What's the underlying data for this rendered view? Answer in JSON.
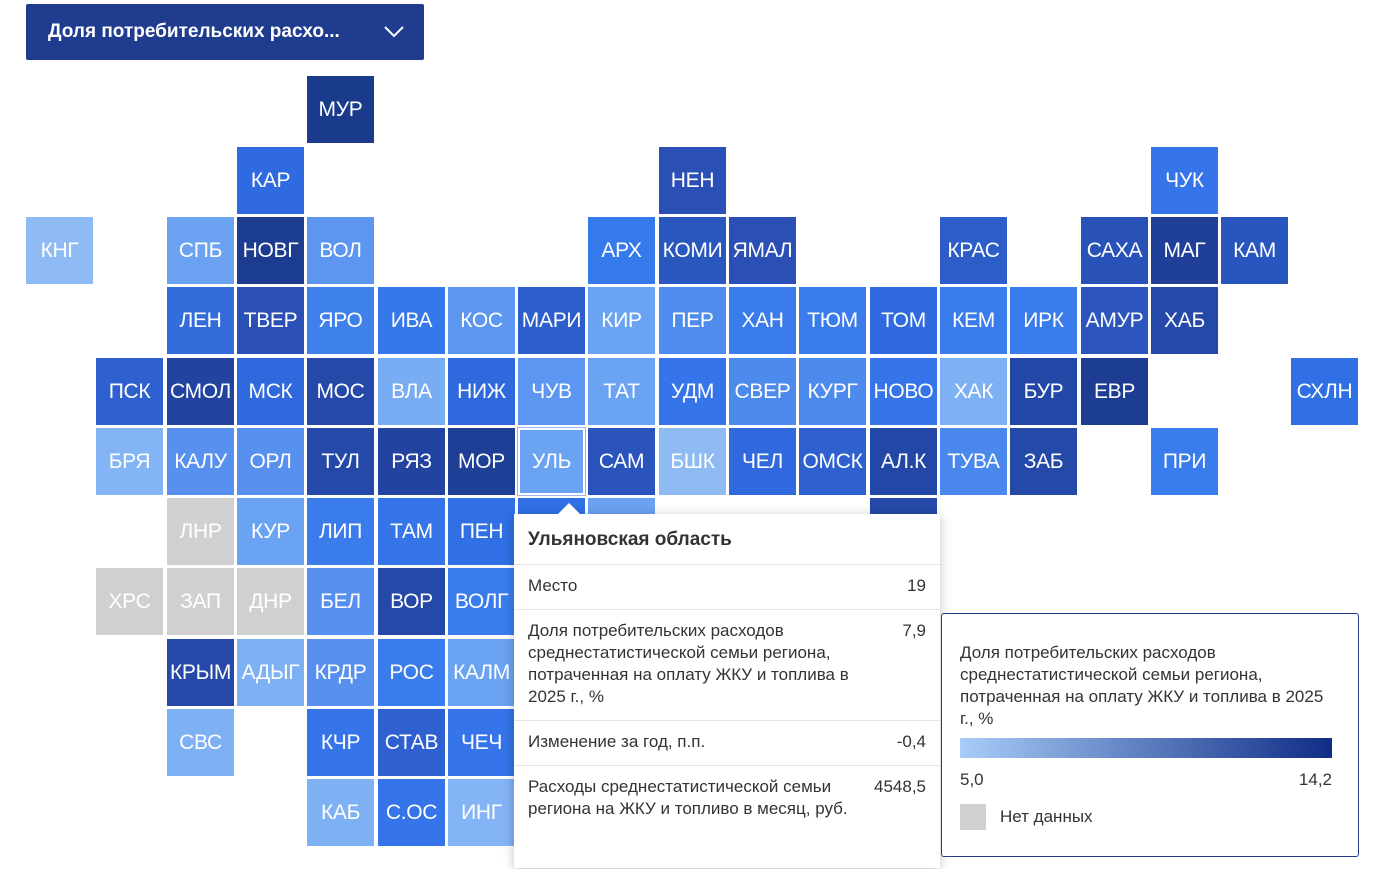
{
  "dropdown": {
    "label": "Доля потребительских расхо...",
    "icon": "chevron-down-icon"
  },
  "colors": {
    "scale_min": "#a9ccf8",
    "scale_max": "#102d86",
    "no_data": "#d0d0d0",
    "selected_border": "#ffffff"
  },
  "regions": [
    {
      "label": "МУР",
      "color": "#1a3a8c"
    },
    {
      "label": "КАР",
      "color": "#2f6ae1"
    },
    {
      "label": "НЕН",
      "color": "#2a4fb5"
    },
    {
      "label": "ЧУК",
      "color": "#3574e9"
    },
    {
      "label": "КНГ",
      "color": "#8fbbf5"
    },
    {
      "label": "СПБ",
      "color": "#6ba3f2"
    },
    {
      "label": "НОВГ",
      "color": "#1c3c90"
    },
    {
      "label": "ВОЛ",
      "color": "#5c96f0"
    },
    {
      "label": "АРХ",
      "color": "#3579ea"
    },
    {
      "label": "КОМИ",
      "color": "#2957bd"
    },
    {
      "label": "ЯМАЛ",
      "color": "#2a4fb5"
    },
    {
      "label": "КРАС",
      "color": "#2d5dc9"
    },
    {
      "label": "САХА",
      "color": "#2952b8"
    },
    {
      "label": "МАГ",
      "color": "#1f3f98"
    },
    {
      "label": "КАМ",
      "color": "#2955bf"
    },
    {
      "label": "ЛЕН",
      "color": "#336ddb"
    },
    {
      "label": "ТВЕР",
      "color": "#2a4fb5"
    },
    {
      "label": "ЯРО",
      "color": "#3e80ec"
    },
    {
      "label": "ИВА",
      "color": "#3478ea"
    },
    {
      "label": "КОС",
      "color": "#5d96f0"
    },
    {
      "label": "МАРИ",
      "color": "#2d5fcc"
    },
    {
      "label": "КИР",
      "color": "#6aa3f2"
    },
    {
      "label": "ПЕР",
      "color": "#4f8cee"
    },
    {
      "label": "ХАН",
      "color": "#3a7cec"
    },
    {
      "label": "ТЮМ",
      "color": "#3a7cec"
    },
    {
      "label": "ТОМ",
      "color": "#2f6ae1"
    },
    {
      "label": "КЕМ",
      "color": "#3a7cec"
    },
    {
      "label": "ИРК",
      "color": "#3a7cec"
    },
    {
      "label": "АМУР",
      "color": "#2c55bd"
    },
    {
      "label": "ХАБ",
      "color": "#2449a8"
    },
    {
      "label": "ПСК",
      "color": "#2e60cf"
    },
    {
      "label": "СМОЛ",
      "color": "#2244a0"
    },
    {
      "label": "МСК",
      "color": "#3069dd"
    },
    {
      "label": "МОС",
      "color": "#2449a8"
    },
    {
      "label": "ВЛА",
      "color": "#78acf3"
    },
    {
      "label": "НИЖ",
      "color": "#3069dd"
    },
    {
      "label": "ЧУВ",
      "color": "#5c96f0"
    },
    {
      "label": "ТАТ",
      "color": "#6aa3f2"
    },
    {
      "label": "УДМ",
      "color": "#3574e9"
    },
    {
      "label": "СВЕР",
      "color": "#4d8aee"
    },
    {
      "label": "КУРГ",
      "color": "#4d8aee"
    },
    {
      "label": "НОВО",
      "color": "#3574e9"
    },
    {
      "label": "ХАК",
      "color": "#7eb0f4"
    },
    {
      "label": "БУР",
      "color": "#2247a6"
    },
    {
      "label": "ЕВР",
      "color": "#1d3d92"
    },
    {
      "label": "СХЛН",
      "color": "#3070e4"
    },
    {
      "label": "БРЯ",
      "color": "#83b4f5"
    },
    {
      "label": "КАЛУ",
      "color": "#5890ef"
    },
    {
      "label": "ОРЛ",
      "color": "#5890ef"
    },
    {
      "label": "ТУЛ",
      "color": "#2449a8"
    },
    {
      "label": "РЯЗ",
      "color": "#2244a0"
    },
    {
      "label": "МОР",
      "color": "#1e3f96"
    },
    {
      "label": "УЛЬ",
      "color": "#6aa3f2",
      "selected": true
    },
    {
      "label": "САМ",
      "color": "#2a54bc"
    },
    {
      "label": "БШК",
      "color": "#8fbbf5"
    },
    {
      "label": "ЧЕЛ",
      "color": "#3069dd"
    },
    {
      "label": "ОМСК",
      "color": "#2e60cf"
    },
    {
      "label": "АЛ.К",
      "color": "#2247a6"
    },
    {
      "label": "ТУВА",
      "color": "#4a88ee"
    },
    {
      "label": "ЗАБ",
      "color": "#2449a8"
    },
    {
      "label": "ПРИ",
      "color": "#3a7cec"
    },
    {
      "label": "ЛНР",
      "color": "#d0d0d0"
    },
    {
      "label": "КУР",
      "color": "#6aa3f2"
    },
    {
      "label": "ЛИП",
      "color": "#3a7cec"
    },
    {
      "label": "ТАМ",
      "color": "#3574e9"
    },
    {
      "label": "ПЕН",
      "color": "#3070e4"
    },
    {
      "label": "ХРС",
      "color": "#d0d0d0"
    },
    {
      "label": "ЗАП",
      "color": "#d0d0d0"
    },
    {
      "label": "ДНР",
      "color": "#d0d0d0"
    },
    {
      "label": "БЕЛ",
      "color": "#5890ef"
    },
    {
      "label": "ВОР",
      "color": "#2449a8"
    },
    {
      "label": "ВОЛГ",
      "color": "#3a7cec"
    },
    {
      "label": "КРЫМ",
      "color": "#2449a8"
    },
    {
      "label": "АДЫГ",
      "color": "#7eb0f4"
    },
    {
      "label": "КРДР",
      "color": "#5890ef"
    },
    {
      "label": "РОС",
      "color": "#3a7cec"
    },
    {
      "label": "КАЛМ",
      "color": "#6aa3f2"
    },
    {
      "label": "СВС",
      "color": "#7eb0f4"
    },
    {
      "label": "КЧР",
      "color": "#3574e9"
    },
    {
      "label": "СТАВ",
      "color": "#2e60cf"
    },
    {
      "label": "ЧЕЧ",
      "color": "#3574e9"
    },
    {
      "label": "КАБ",
      "color": "#7eb0f4"
    },
    {
      "label": "С.ОС",
      "color": "#3574e9"
    },
    {
      "label": "ИНГ",
      "color": "#83b4f5"
    },
    {
      "label": "",
      "color": "#6aa3f2"
    },
    {
      "label": "",
      "color": "#2449a8"
    },
    {
      "label": "",
      "color": "#3070e4"
    },
    {
      "label": "",
      "color": "#2a4fb5"
    }
  ],
  "tooltip": {
    "title": "Ульяновская область",
    "rows": [
      {
        "label": "Место",
        "value": "19"
      },
      {
        "label": "Доля потребительских расходов среднестатистической семьи региона, потраченная на оплату ЖКУ и топлива в 2025 г., %",
        "value": "7,9"
      },
      {
        "label": "Изменение за год, п.п.",
        "value": "-0,4"
      },
      {
        "label": "Расходы среднестатистической семьи региона на ЖКУ и топливо в месяц, руб.",
        "value": "4548,5"
      }
    ]
  },
  "legend": {
    "title": "Доля потребительских расходов среднестатистической семьи региона, потраченная на оплату ЖКУ и топлива в 2025 г., %",
    "min": "5,0",
    "max": "14,2",
    "no_data": "Нет данных"
  }
}
